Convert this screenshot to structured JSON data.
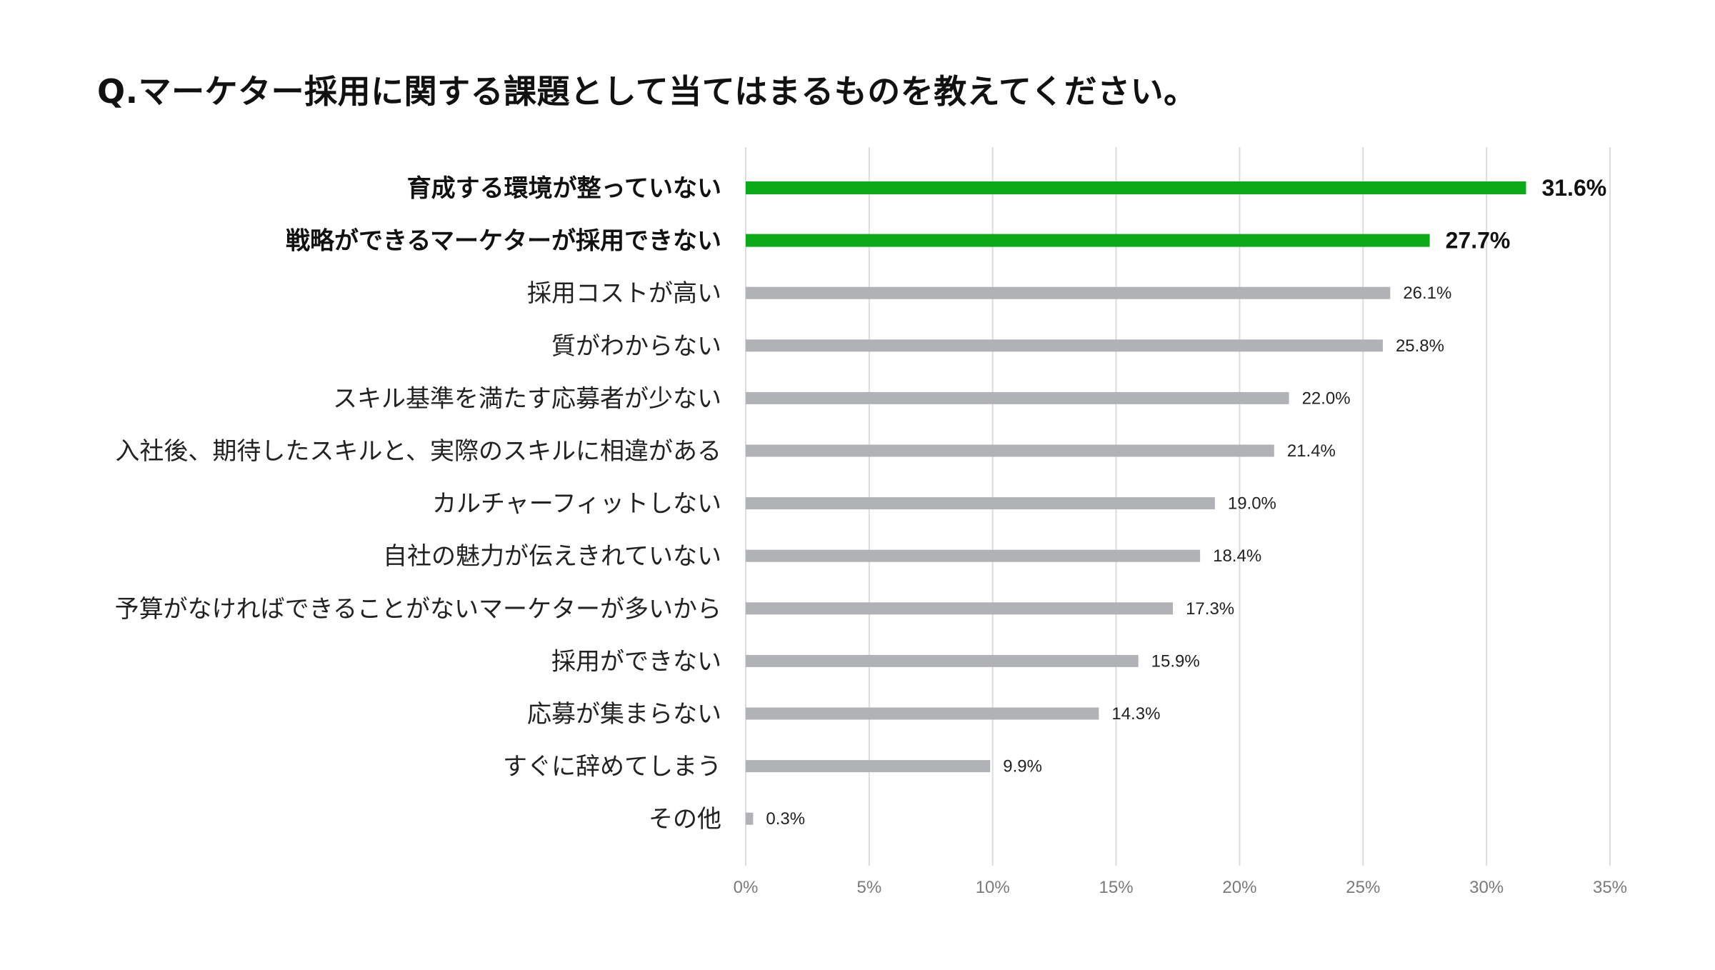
{
  "chart_data": {
    "type": "bar",
    "orientation": "horizontal",
    "title": "Q.マーケター採用に関する課題として当てはまるものを教えてください。",
    "categories": [
      "育成する環境が整っていない",
      "戦略ができるマーケターが採用できない",
      "採用コストが高い",
      "質がわからない",
      "スキル基準を満たす応募者が少ない",
      "入社後、期待したスキルと、実際のスキルに相違がある",
      "カルチャーフィットしない",
      "自社の魅力が伝えきれていない",
      "予算がなければできることがないマーケターが多いから",
      "採用ができない",
      "応募が集まらない",
      "すぐに辞めてしまう",
      "その他"
    ],
    "values": [
      31.6,
      27.7,
      26.1,
      25.8,
      22.0,
      21.4,
      19.0,
      18.4,
      17.3,
      15.9,
      14.3,
      9.9,
      0.3
    ],
    "value_labels": [
      "31.6%",
      "27.7%",
      "26.1%",
      "25.8%",
      "22.0%",
      "21.4%",
      "19.0%",
      "18.4%",
      "17.3%",
      "15.9%",
      "14.3%",
      "9.9%",
      "0.3%"
    ],
    "highlight_count": 2,
    "xlim": [
      0,
      35
    ],
    "x_ticks": [
      0,
      5,
      10,
      15,
      20,
      25,
      30,
      35
    ],
    "x_tick_labels": [
      "0%",
      "5%",
      "10%",
      "15%",
      "20%",
      "25%",
      "30%",
      "35%"
    ],
    "grid": true,
    "legend": "none",
    "colors": {
      "highlight": "#0aab17",
      "default": "#b1b2b5",
      "grid": "#dcdcdc"
    }
  }
}
